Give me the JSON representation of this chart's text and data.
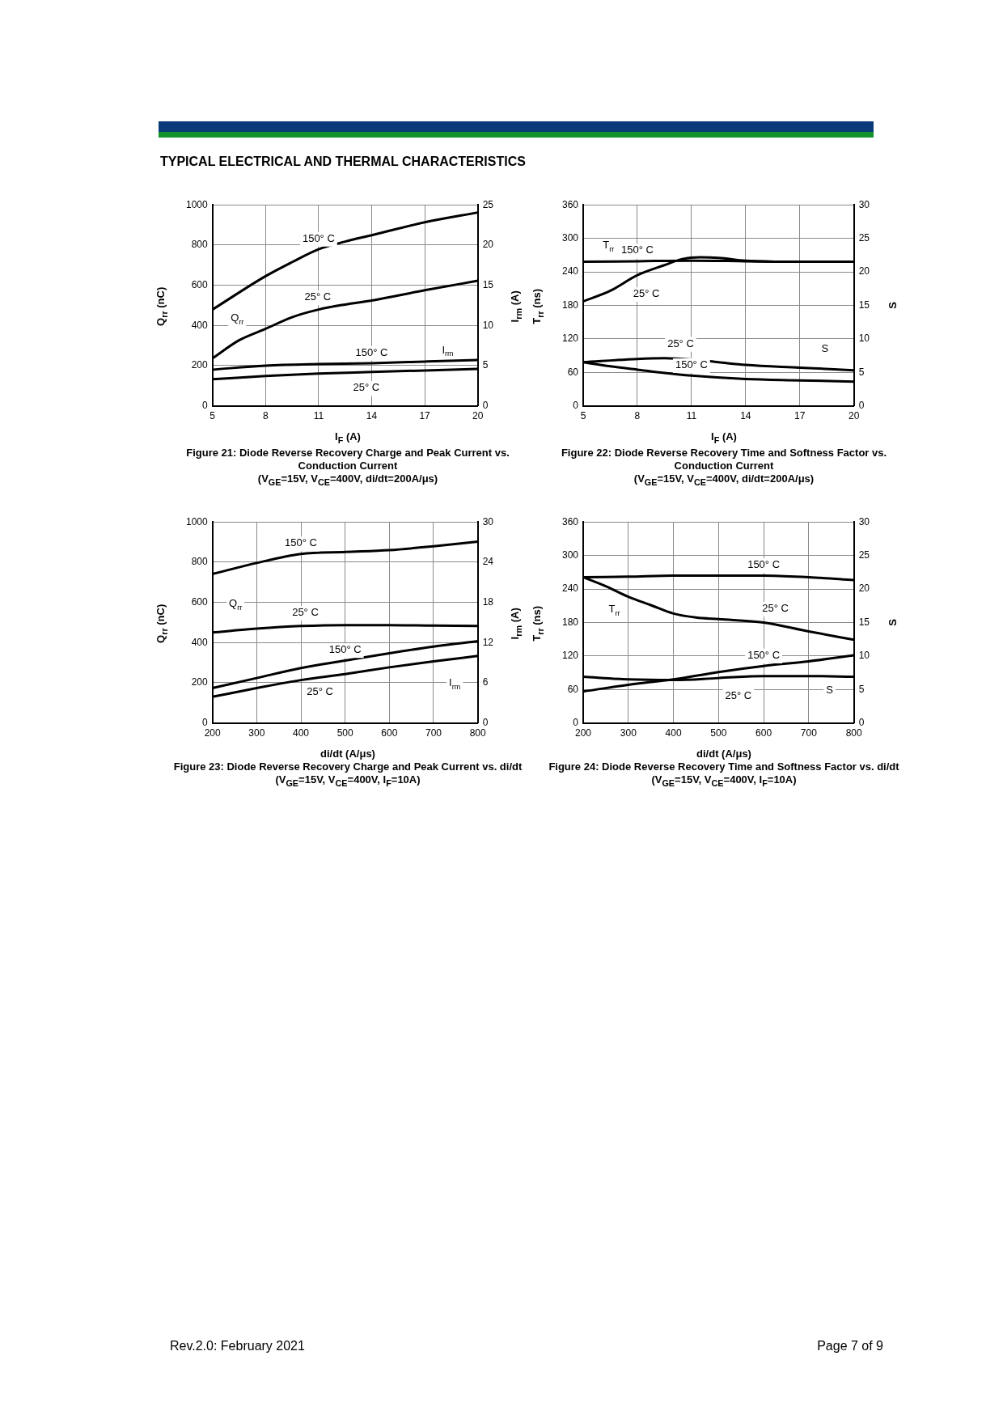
{
  "chart_data": [
    {
      "type": "line",
      "title": "Figure 21: Diode Reverse Recovery Charge and Peak Current vs. Conduction Current",
      "subtitle": "(V$_{GE}$=15V, V$_{CE}$=400V, di/dt=200A/μs)",
      "xlabel": "I$_{F}$ (A)",
      "ylabel": "Q$_{rr}$ (nC)",
      "y2label": "I$_{rm}$ (A)",
      "xlim": [
        5,
        20
      ],
      "xticks": [
        5,
        8,
        11,
        14,
        17,
        20
      ],
      "ylim": [
        0,
        1000
      ],
      "yticks": [
        0,
        200,
        400,
        600,
        800,
        1000
      ],
      "y2lim": [
        0,
        25
      ],
      "y2ticks": [
        0,
        5,
        10,
        15,
        20,
        25
      ],
      "grid": true,
      "series": [
        {
          "color": "#000000",
          "x": [
            5,
            8,
            9.5,
            11,
            12.5,
            14,
            17,
            20
          ],
          "values": [
            479,
            645,
            715,
            779,
            817,
            849,
            913,
            962
          ]
        },
        {
          "color": "#000000",
          "x": [
            5,
            6.5,
            8,
            9.5,
            11,
            12.5,
            14,
            17,
            20
          ],
          "values": [
            236,
            326,
            383,
            441,
            479,
            504,
            524,
            575,
            622
          ]
        },
        {
          "color": "#000000",
          "axis": "y2",
          "x": [
            5,
            8,
            11,
            14,
            17,
            20
          ],
          "values": [
            4.5,
            5,
            5.2,
            5.3,
            5.5,
            5.7
          ]
        },
        {
          "color": "#000000",
          "axis": "y2",
          "x": [
            5,
            8,
            11,
            14,
            17,
            20
          ],
          "values": [
            3.3,
            3.7,
            4,
            4.2,
            4.4,
            4.6
          ]
        }
      ],
      "annotations": [
        "TYPICAL ELECTRICAL AND THERMAL CHARACTERISTICS",
        {
          "text": "150° C",
          "x": 11,
          "y": 779
        },
        {
          "text": "25° C",
          "x": 10.95,
          "y": 540
        },
        {
          "text": "Q$_{rr}$",
          "x": 6.4,
          "y": 434
        },
        {
          "text": "150° C",
          "x": 14,
          "y": 212
        },
        {
          "text": "I$_{rm}$",
          "x": 18.3,
          "y": 275
        },
        {
          "text": "25° C",
          "x": 13.7,
          "y": 89
        }
      ]
    },
    {
      "type": "line",
      "title": "Figure 22: Diode Reverse Recovery Time and Softness Factor vs. Conduction Current",
      "subtitle": "(V$_{GE}$=15V, V$_{CE}$=400V, di/dt=200A/μs)",
      "xlabel": "I$_{F}$ (A)",
      "ylabel": "T$_{rr}$ (ns)",
      "y2label": "S",
      "xlim": [
        5,
        20
      ],
      "xticks": [
        5,
        8,
        11,
        14,
        17,
        20
      ],
      "ylim": [
        0,
        360
      ],
      "yticks": [
        0,
        60,
        120,
        180,
        240,
        300,
        360
      ],
      "y2lim": [
        0,
        30
      ],
      "y2ticks": [
        0,
        5,
        10,
        15,
        20,
        25,
        30
      ],
      "grid": true,
      "series": [
        {
          "color": "#000000",
          "x": [
            5,
            8,
            11,
            14,
            17,
            20
          ],
          "values": [
            258,
            259,
            260,
            259,
            258,
            258
          ]
        },
        {
          "color": "#000000",
          "x": [
            5,
            6.5,
            8,
            9.5,
            10.5,
            11.5,
            12.5,
            14,
            17,
            20
          ],
          "values": [
            187,
            206,
            234,
            252,
            263,
            266,
            265,
            260,
            258,
            258
          ]
        },
        {
          "color": "#000000",
          "axis": "y2",
          "x": [
            5,
            8,
            9.5,
            11,
            12.5,
            14,
            17,
            20
          ],
          "values": [
            6.5,
            7,
            7.1,
            6.9,
            6.5,
            6.1,
            5.7,
            5.3
          ]
        },
        {
          "color": "#000000",
          "axis": "y2",
          "x": [
            5,
            6.5,
            8,
            9.5,
            11,
            14,
            17,
            20
          ],
          "values": [
            6.5,
            5.9,
            5.4,
            4.9,
            4.5,
            4,
            3.8,
            3.6
          ]
        }
      ],
      "annotations": [
        {
          "text": "T$_{rr}$",
          "x": 6.4,
          "y": 287
        },
        {
          "text": "150° C",
          "x": 8,
          "y": 259
        },
        {
          "text": "25° C",
          "x": 8.5,
          "y": 200
        },
        {
          "text": "25° C",
          "x": 10.4,
          "y": 111
        },
        {
          "text": "S",
          "x": 18.4,
          "y": 101
        },
        {
          "text": "150° C",
          "x": 11,
          "y": 54
        }
      ]
    },
    {
      "type": "line",
      "title": "Figure 23: Diode Reverse Recovery Charge and Peak Current vs. di/dt",
      "subtitle": "(V$_{GE}$=15V, V$_{CE}$=400V, I$_{F}$=10A)",
      "xlabel": "di/dt (A/μs)",
      "ylabel": "Q$_{rr}$ (nC)",
      "y2label": "I$_{rm}$ (A)",
      "xlim": [
        200,
        800
      ],
      "xticks": [
        200,
        300,
        400,
        500,
        600,
        700,
        800
      ],
      "ylim": [
        0,
        1000
      ],
      "yticks": [
        0,
        200,
        400,
        600,
        800,
        1000
      ],
      "y2lim": [
        0,
        30
      ],
      "y2ticks": [
        0,
        6,
        12,
        18,
        24,
        30
      ],
      "grid": true,
      "series": [
        {
          "color": "#000000",
          "x": [
            200,
            300,
            400,
            500,
            600,
            700,
            800
          ],
          "values": [
            741,
            796,
            841,
            851,
            860,
            879,
            902
          ]
        },
        {
          "color": "#000000",
          "x": [
            200,
            300,
            400,
            500,
            600,
            700,
            800
          ],
          "values": [
            450,
            469,
            482,
            487,
            487,
            484,
            482
          ]
        },
        {
          "color": "#000000",
          "axis": "y2",
          "x": [
            200,
            300,
            400,
            500,
            600,
            700,
            800
          ],
          "values": [
            5.2,
            6.7,
            8.2,
            9.3,
            10.4,
            11.4,
            12.2
          ]
        },
        {
          "color": "#000000",
          "axis": "y2",
          "x": [
            200,
            300,
            400,
            500,
            600,
            700,
            800
          ],
          "values": [
            3.9,
            5.2,
            6.4,
            7.3,
            8.3,
            9.2,
            10
          ]
        }
      ],
      "annotations": [
        {
          "text": "150° C",
          "x": 400,
          "y": 841
        },
        {
          "text": "Q$_{rr}$",
          "x": 252,
          "y": 592
        },
        {
          "text": "25° C",
          "x": 410,
          "y": 548
        },
        {
          "text": "150° C",
          "x": 500,
          "y": 310
        },
        {
          "text": "I$_{rm}$",
          "x": 748,
          "y": 197
        },
        {
          "text": "25° C",
          "x": 443,
          "y": 153
        }
      ]
    },
    {
      "type": "line",
      "title": "Figure 24: Diode Reverse Recovery Time and Softness Factor vs. di/dt",
      "subtitle": "(V$_{GE}$=15V, V$_{CE}$=400V, I$_{F}$=10A)",
      "xlabel": "di/dt (A/μs)",
      "ylabel": "T$_{rr}$ (ns)",
      "y2label": "S",
      "xlim": [
        200,
        800
      ],
      "xticks": [
        200,
        300,
        400,
        500,
        600,
        700,
        800
      ],
      "ylim": [
        0,
        360
      ],
      "yticks": [
        0,
        60,
        120,
        180,
        240,
        300,
        360
      ],
      "y2lim": [
        0,
        30
      ],
      "y2ticks": [
        0,
        5,
        10,
        15,
        20,
        25,
        30
      ],
      "grid": true,
      "series": [
        {
          "color": "#000000",
          "x": [
            200,
            300,
            400,
            500,
            600,
            700,
            800
          ],
          "values": [
            261,
            262,
            264,
            264,
            264,
            261,
            256
          ]
        },
        {
          "color": "#000000",
          "x": [
            200,
            250,
            300,
            350,
            400,
            450,
            500,
            600,
            700,
            800
          ],
          "values": [
            261,
            245,
            226,
            211,
            196,
            189,
            186,
            180,
            164,
            149
          ]
        },
        {
          "color": "#000000",
          "axis": "y2",
          "x": [
            200,
            300,
            400,
            500,
            600,
            700,
            800
          ],
          "values": [
            4.7,
            5.7,
            6.5,
            7.6,
            8.5,
            9.2,
            10.1
          ]
        },
        {
          "color": "#000000",
          "axis": "y2",
          "x": [
            200,
            300,
            400,
            500,
            600,
            700,
            800
          ],
          "values": [
            6.9,
            6.5,
            6.4,
            6.7,
            7,
            7,
            6.9
          ]
        }
      ],
      "annotations": [
        {
          "text": "150° C",
          "x": 600,
          "y": 264
        },
        {
          "text": "T$_{rr}$",
          "x": 269,
          "y": 203
        },
        {
          "text": "25° C",
          "x": 626,
          "y": 205
        },
        {
          "text": "150° C",
          "x": 600,
          "y": 102
        },
        {
          "text": "25° C",
          "x": 544,
          "y": 48
        },
        {
          "text": "S",
          "x": 746,
          "y": 58
        },
        "Rev.2.0: February 2021",
        "Page 7 of 9"
      ]
    }
  ]
}
